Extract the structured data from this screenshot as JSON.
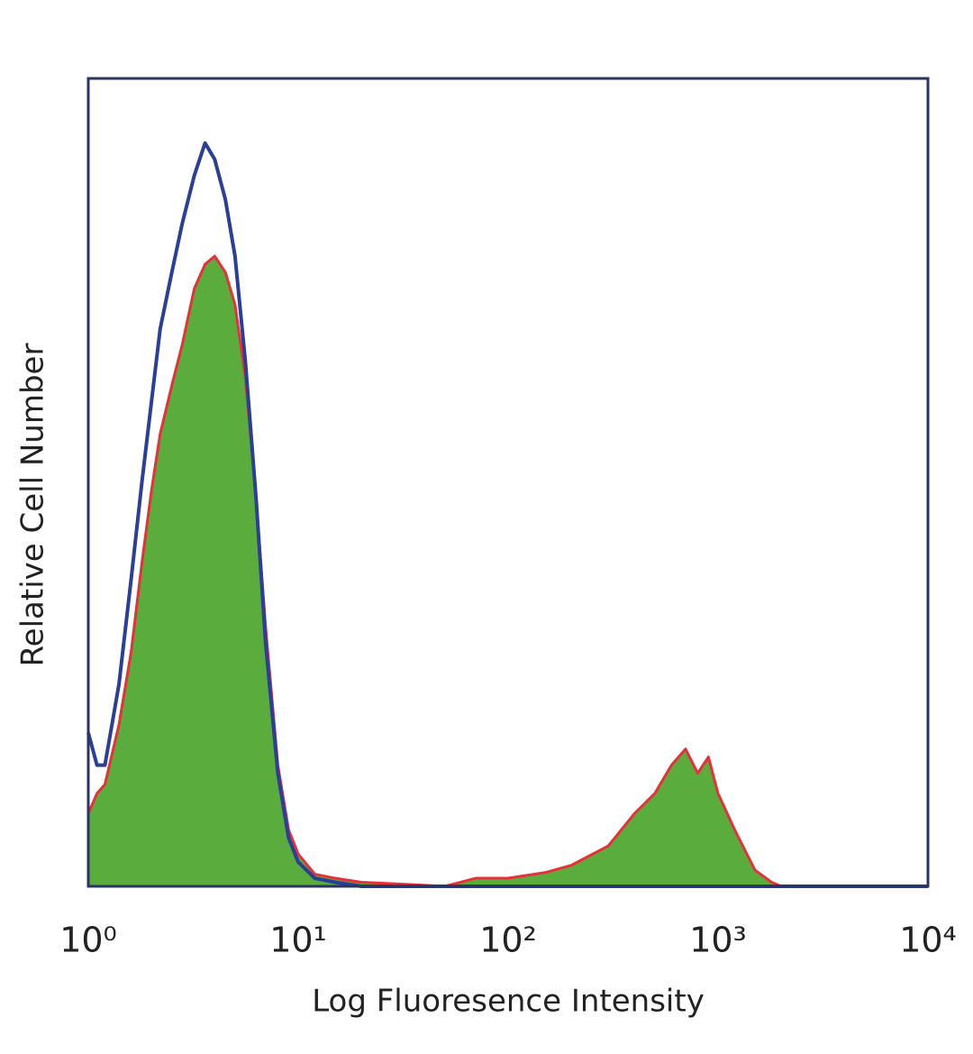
{
  "chart_data": {
    "type": "line",
    "x_label": "Log Fluoresence Intensity",
    "y_label": "Relative Cell Number",
    "xscale": "log",
    "xlim": [
      1,
      10000
    ],
    "xticks": [
      {
        "value": 1,
        "label": "10⁰"
      },
      {
        "value": 10,
        "label": "10¹"
      },
      {
        "value": 100,
        "label": "10²"
      },
      {
        "value": 1000,
        "label": "10³"
      },
      {
        "value": 10000,
        "label": "10⁴"
      }
    ],
    "ylim": [
      0,
      100
    ],
    "x": [
      1,
      1.1,
      1.2,
      1.4,
      1.6,
      1.8,
      2,
      2.2,
      2.5,
      2.8,
      3.2,
      3.6,
      4,
      4.5,
      5,
      5.6,
      6.3,
      7,
      8,
      9,
      10,
      12,
      15,
      20,
      30,
      50,
      70,
      100,
      150,
      200,
      300,
      400,
      500,
      600,
      700,
      800,
      900,
      1000,
      1200,
      1500,
      1800,
      2000,
      10000
    ],
    "series": [
      {
        "color": "#e8303a",
        "fill": "#5aac3c",
        "values": [
          9,
          11.5,
          12.6,
          20,
          29,
          40,
          49,
          56,
          62,
          67,
          74,
          77,
          78,
          76,
          72,
          63,
          48,
          32,
          15,
          7,
          4,
          1.5,
          1,
          0.5,
          0.3,
          0,
          1,
          1,
          1.7,
          2.6,
          5,
          9,
          11.5,
          15,
          17,
          14,
          16,
          11.5,
          7,
          2,
          0.5,
          0,
          0
        ]
      },
      {
        "color": "#2a3f9a",
        "values": [
          19,
          15,
          15,
          25,
          38,
          50,
          60,
          69,
          76,
          82,
          88,
          92,
          90,
          85,
          78,
          65,
          48,
          30,
          14,
          6,
          3,
          1,
          0.5,
          0,
          0,
          0,
          0,
          0,
          0,
          0,
          0,
          0,
          0,
          0,
          0,
          0,
          0,
          0,
          0,
          0,
          0,
          0,
          0
        ]
      }
    ]
  }
}
